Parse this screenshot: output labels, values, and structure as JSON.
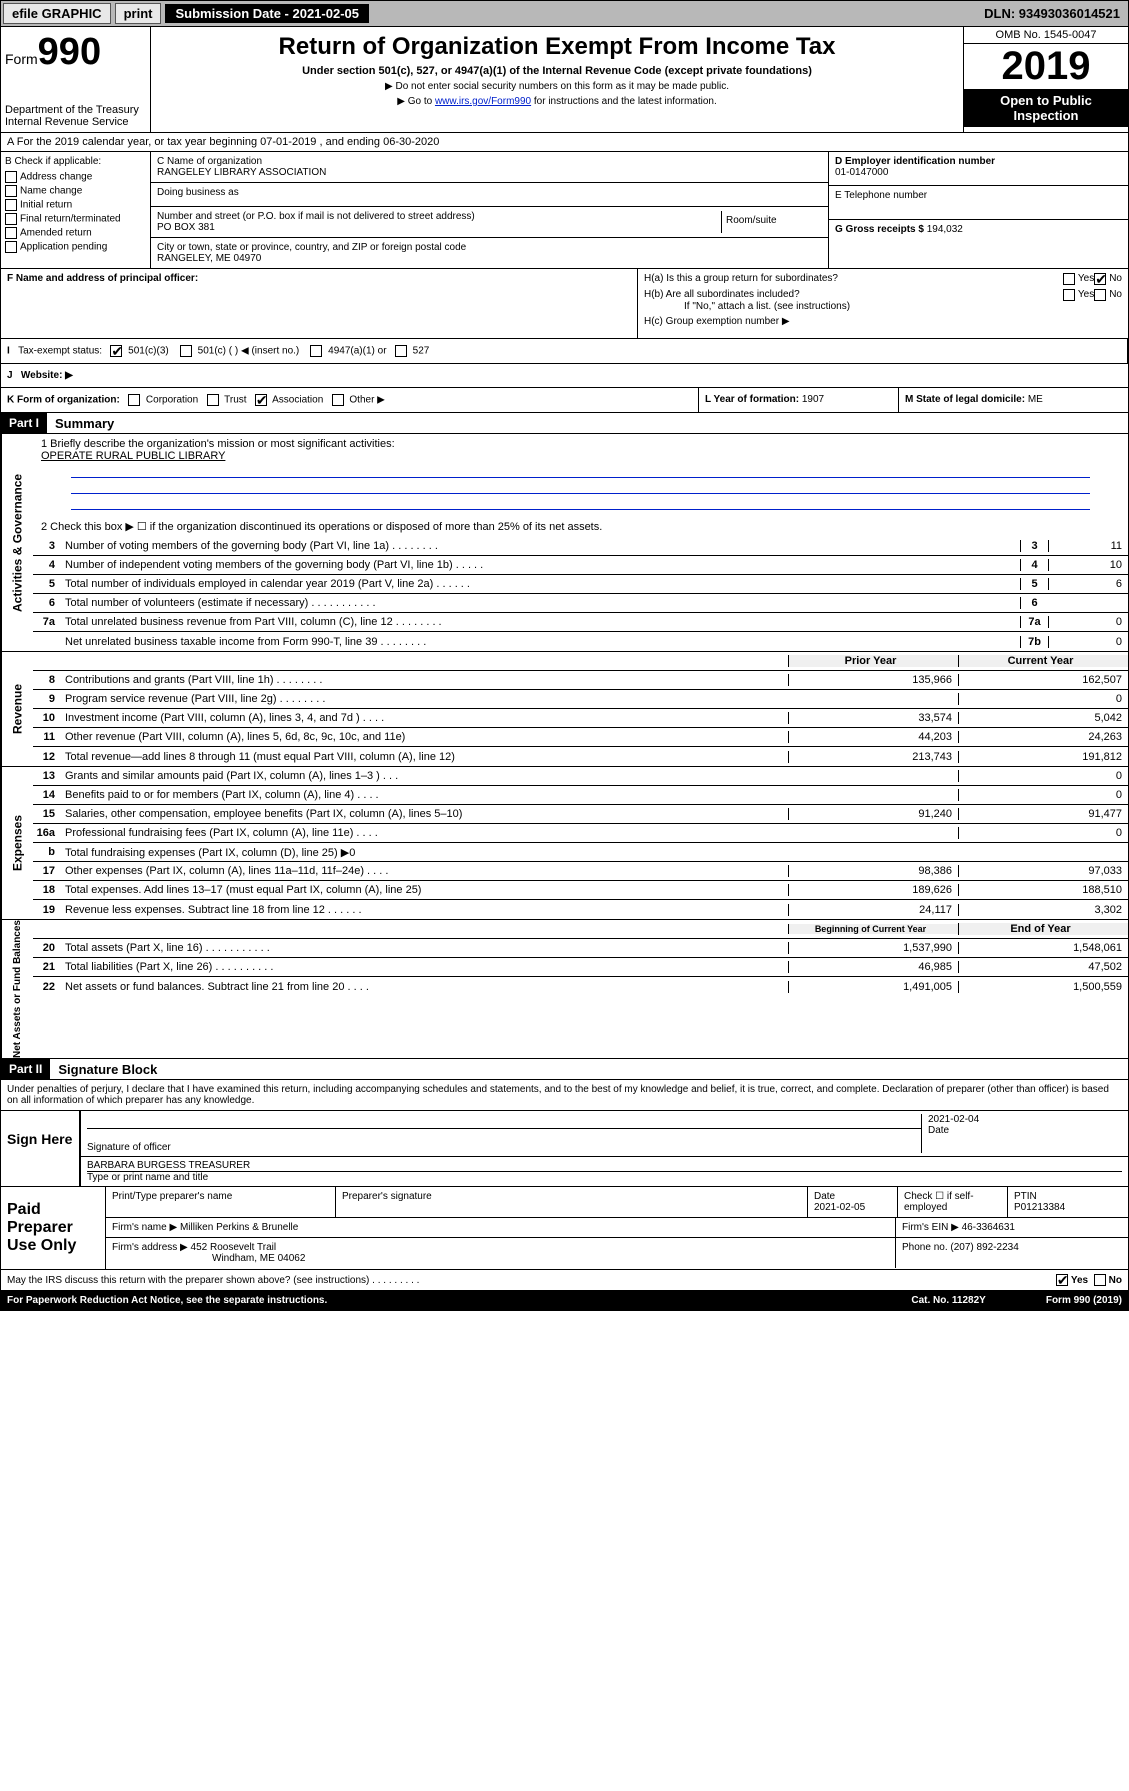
{
  "topbar": {
    "efile": "efile GRAPHIC",
    "print": "print",
    "submission_label": "Submission Date - 2021-02-05",
    "dln": "DLN: 93493036014521"
  },
  "header": {
    "form_prefix": "Form",
    "form_number": "990",
    "dept": "Department of the Treasury",
    "irs": "Internal Revenue Service",
    "title": "Return of Organization Exempt From Income Tax",
    "subtitle": "Under section 501(c), 527, or 4947(a)(1) of the Internal Revenue Code (except private foundations)",
    "note1": "▶ Do not enter social security numbers on this form as it may be made public.",
    "note2_pre": "▶ Go to ",
    "note2_link": "www.irs.gov/Form990",
    "note2_post": " for instructions and the latest information.",
    "omb": "OMB No. 1545-0047",
    "year": "2019",
    "open": "Open to Public Inspection"
  },
  "row_a": "A For the 2019 calendar year, or tax year beginning 07-01-2019     , and ending 06-30-2020",
  "checkboxes": {
    "header": "B Check if applicable:",
    "items": [
      "Address change",
      "Name change",
      "Initial return",
      "Final return/terminated",
      "Amended return",
      "Application pending"
    ]
  },
  "org": {
    "name_label": "C Name of organization",
    "name": "RANGELEY LIBRARY ASSOCIATION",
    "dba_label": "Doing business as",
    "addr_label": "Number and street (or P.O. box if mail is not delivered to street address)",
    "room_label": "Room/suite",
    "addr": "PO BOX 381",
    "city_label": "City or town, state or province, country, and ZIP or foreign postal code",
    "city": "RANGELEY, ME  04970"
  },
  "right": {
    "ein_label": "D Employer identification number",
    "ein": "01-0147000",
    "phone_label": "E Telephone number",
    "receipts_label": "G Gross receipts $",
    "receipts": "194,032"
  },
  "f": {
    "label": "F Name and address of principal officer:"
  },
  "h": {
    "a": "H(a)  Is this a group return for subordinates?",
    "b": "H(b)  Are all subordinates included?",
    "b_note": "If \"No,\" attach a list. (see instructions)",
    "c": "H(c)  Group exemption number ▶",
    "yes": "Yes",
    "no": "No"
  },
  "i": {
    "label": "Tax-exempt status:",
    "o1": "501(c)(3)",
    "o2": "501(c) (  ) ◀ (insert no.)",
    "o3": "4947(a)(1) or",
    "o4": "527"
  },
  "j": {
    "label": "Website: ▶"
  },
  "k": {
    "label": "K Form of organization:",
    "o1": "Corporation",
    "o2": "Trust",
    "o3": "Association",
    "o4": "Other ▶"
  },
  "l": {
    "label": "L Year of formation:",
    "val": "1907"
  },
  "m": {
    "label": "M State of legal domicile:",
    "val": "ME"
  },
  "part1": {
    "hdr": "Part I",
    "title": "Summary",
    "q1_label": "1  Briefly describe the organization's mission or most significant activities:",
    "q1_val": "OPERATE RURAL PUBLIC LIBRARY",
    "q2": "2   Check this box ▶ ☐  if the organization discontinued its operations or disposed of more than 25% of its net assets.",
    "rows_gov": [
      {
        "n": "3",
        "d": "Number of voting members of the governing body (Part VI, line 1a)  .    .    .    .    .    .    .    .",
        "c": "3",
        "v": "11"
      },
      {
        "n": "4",
        "d": "Number of independent voting members of the governing body (Part VI, line 1b)  .    .    .    .    .",
        "c": "4",
        "v": "10"
      },
      {
        "n": "5",
        "d": "Total number of individuals employed in calendar year 2019 (Part V, line 2a)  .    .    .    .    .    .",
        "c": "5",
        "v": "6"
      },
      {
        "n": "6",
        "d": "Total number of volunteers (estimate if necessary)  .    .    .    .    .    .    .    .    .    .    .",
        "c": "6",
        "v": ""
      },
      {
        "n": "7a",
        "d": "Total unrelated business revenue from Part VIII, column (C), line 12  .    .    .    .    .    .    .    .",
        "c": "7a",
        "v": "0"
      },
      {
        "n": "",
        "d": "Net unrelated business taxable income from Form 990-T, line 39  .    .    .    .    .    .    .    .",
        "c": "7b",
        "v": "0"
      }
    ],
    "hdr_prior": "Prior Year",
    "hdr_curr": "Current Year",
    "rows_rev": [
      {
        "n": "8",
        "d": "Contributions and grants (Part VIII, line 1h)  .    .    .    .    .    .    .    .",
        "p": "135,966",
        "c": "162,507"
      },
      {
        "n": "9",
        "d": "Program service revenue (Part VIII, line 2g)  .    .    .    .    .    .    .    .",
        "p": "",
        "c": "0"
      },
      {
        "n": "10",
        "d": "Investment income (Part VIII, column (A), lines 3, 4, and 7d )  .    .    .    .",
        "p": "33,574",
        "c": "5,042"
      },
      {
        "n": "11",
        "d": "Other revenue (Part VIII, column (A), lines 5, 6d, 8c, 9c, 10c, and 11e)",
        "p": "44,203",
        "c": "24,263"
      },
      {
        "n": "12",
        "d": "Total revenue—add lines 8 through 11 (must equal Part VIII, column (A), line 12)",
        "p": "213,743",
        "c": "191,812"
      }
    ],
    "rows_exp": [
      {
        "n": "13",
        "d": "Grants and similar amounts paid (Part IX, column (A), lines 1–3 )  .    .    .",
        "p": "",
        "c": "0"
      },
      {
        "n": "14",
        "d": "Benefits paid to or for members (Part IX, column (A), line 4)  .    .    .    .",
        "p": "",
        "c": "0"
      },
      {
        "n": "15",
        "d": "Salaries, other compensation, employee benefits (Part IX, column (A), lines 5–10)",
        "p": "91,240",
        "c": "91,477"
      },
      {
        "n": "16a",
        "d": "Professional fundraising fees (Part IX, column (A), line 11e)  .    .    .    .",
        "p": "",
        "c": "0"
      },
      {
        "n": "b",
        "d": "Total fundraising expenses (Part IX, column (D), line 25) ▶0",
        "p": "shade",
        "c": "shade"
      },
      {
        "n": "17",
        "d": "Other expenses (Part IX, column (A), lines 11a–11d, 11f–24e)  .    .    .    .",
        "p": "98,386",
        "c": "97,033"
      },
      {
        "n": "18",
        "d": "Total expenses. Add lines 13–17 (must equal Part IX, column (A), line 25)",
        "p": "189,626",
        "c": "188,510"
      },
      {
        "n": "19",
        "d": "Revenue less expenses. Subtract line 18 from line 12  .    .    .    .    .    .",
        "p": "24,117",
        "c": "3,302"
      }
    ],
    "hdr_beg": "Beginning of Current Year",
    "hdr_end": "End of Year",
    "rows_net": [
      {
        "n": "20",
        "d": "Total assets (Part X, line 16)  .    .    .    .    .    .    .    .    .    .    .",
        "p": "1,537,990",
        "c": "1,548,061"
      },
      {
        "n": "21",
        "d": "Total liabilities (Part X, line 26)  .    .    .    .    .    .    .    .    .    .",
        "p": "46,985",
        "c": "47,502"
      },
      {
        "n": "22",
        "d": "Net assets or fund balances. Subtract line 21 from line 20  .    .    .    .",
        "p": "1,491,005",
        "c": "1,500,559"
      }
    ],
    "vert_gov": "Activities & Governance",
    "vert_rev": "Revenue",
    "vert_exp": "Expenses",
    "vert_net": "Net Assets or Fund Balances"
  },
  "part2": {
    "hdr": "Part II",
    "title": "Signature Block",
    "perjury": "Under penalties of perjury, I declare that I have examined this return, including accompanying schedules and statements, and to the best of my knowledge and belief, it is true, correct, and complete. Declaration of preparer (other than officer) is based on all information of which preparer has any knowledge."
  },
  "sign": {
    "lbl": "Sign Here",
    "sig_officer": "Signature of officer",
    "date": "2021-02-04",
    "date_lbl": "Date",
    "name": "BARBARA BURGESS TREASURER",
    "name_lbl": "Type or print name and title"
  },
  "prep": {
    "lbl": "Paid Preparer Use Only",
    "h_name": "Print/Type preparer's name",
    "h_sig": "Preparer's signature",
    "h_date": "Date",
    "date": "2021-02-05",
    "check_lbl": "Check ☐ if self-employed",
    "ptin_lbl": "PTIN",
    "ptin": "P01213384",
    "firm_name_lbl": "Firm's name      ▶",
    "firm_name": "Milliken Perkins & Brunelle",
    "firm_ein_lbl": "Firm's EIN ▶",
    "firm_ein": "46-3364631",
    "firm_addr_lbl": "Firm's address ▶",
    "firm_addr1": "452 Roosevelt Trail",
    "firm_addr2": "Windham, ME  04062",
    "phone_lbl": "Phone no.",
    "phone": "(207) 892-2234"
  },
  "footer": {
    "discuss": "May the IRS discuss this return with the preparer shown above? (see instructions)  .    .    .    .    .    .    .    .    .",
    "yes": "Yes",
    "no": "No",
    "paperwork": "For Paperwork Reduction Act Notice, see the separate instructions.",
    "cat": "Cat. No. 11282Y",
    "form": "Form 990 (2019)"
  },
  "colors": {
    "link": "#0020cc",
    "black": "#000000",
    "gray_bg": "#b8b8b8",
    "shade": "#d0d0d0"
  }
}
